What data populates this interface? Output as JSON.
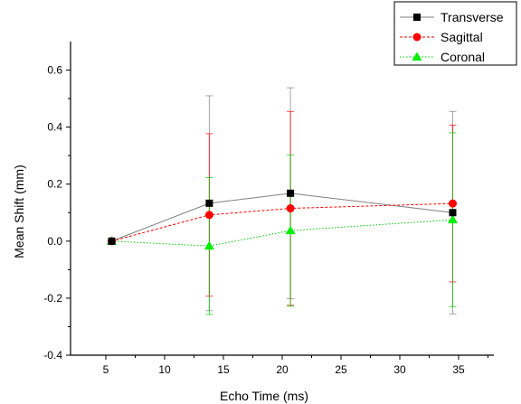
{
  "chart_data": {
    "type": "line",
    "title": "",
    "xlabel": "Echo Time (ms)",
    "ylabel": "Mean Shift (mm)",
    "xlim": [
      2,
      38
    ],
    "ylim": [
      -0.4,
      0.7
    ],
    "xticks": [
      5,
      10,
      15,
      20,
      25,
      30,
      35
    ],
    "yticks": [
      -0.4,
      -0.2,
      0.0,
      0.2,
      0.4,
      0.6
    ],
    "ytick_labels": [
      "-0.4",
      "-0.2",
      "0.0",
      "0.2",
      "0.4",
      "0.6"
    ],
    "x": [
      5.5,
      13.8,
      20.7,
      34.5
    ],
    "grid": false,
    "legend_position": "top-right",
    "series": [
      {
        "name": "Transverse",
        "values": [
          0.0,
          0.133,
          0.168,
          0.1
        ],
        "error": [
          0.0,
          0.377,
          0.37,
          0.355
        ],
        "color": "#000000",
        "line_color": "#808080",
        "line_style": "solid",
        "marker": "square"
      },
      {
        "name": "Sagittal",
        "values": [
          0.0,
          0.092,
          0.115,
          0.132
        ],
        "error": [
          0.0,
          0.285,
          0.34,
          0.275
        ],
        "color": "#ff0000",
        "line_color": "#ff0000",
        "line_style": "dashed",
        "marker": "circle"
      },
      {
        "name": "Coronal",
        "values": [
          0.0,
          -0.017,
          0.037,
          0.075
        ],
        "error": [
          0.0,
          0.24,
          0.265,
          0.305
        ],
        "color": "#00ee00",
        "line_color": "#00cc00",
        "line_style": "dotted",
        "marker": "triangle"
      }
    ]
  }
}
